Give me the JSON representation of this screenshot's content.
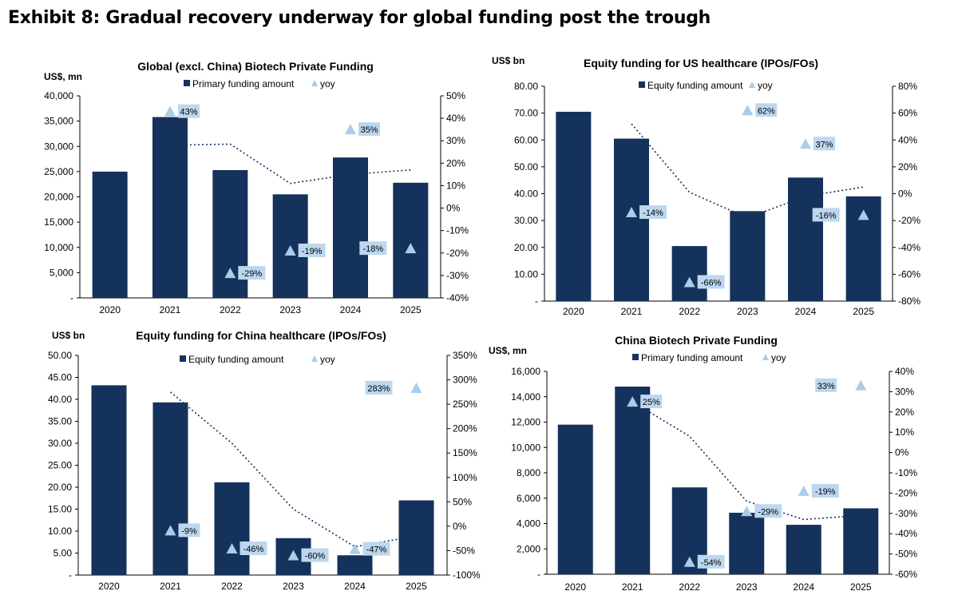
{
  "exhibit_title": "Exhibit 8: Gradual recovery underway for global funding post the trough",
  "colors": {
    "bar": "#14325b",
    "yoy_marker": "#a9cdea",
    "yoy_label_bg": "#bcd7ef",
    "trend": "#14325b"
  },
  "chart_data": [
    {
      "type": "bar",
      "title": "Global (excl. China) Biotech Private Funding",
      "unit_label": "US$, mn",
      "legend": {
        "bar": "Primary funding amount",
        "yoy": "yoy"
      },
      "categories": [
        "2020",
        "2021",
        "2022",
        "2023",
        "2024",
        "2025"
      ],
      "series": [
        {
          "name": "Primary funding amount",
          "values": [
            25000,
            35800,
            25300,
            20500,
            27800,
            22800
          ]
        },
        {
          "name": "yoy",
          "values": [
            null,
            0.43,
            -0.29,
            -0.19,
            0.35,
            -0.18
          ]
        }
      ],
      "yoy_labels": [
        "",
        "43%",
        "-29%",
        "-19%",
        "35%",
        "-18%"
      ],
      "trend": {
        "x": [
          1,
          2,
          3,
          4,
          5
        ],
        "y": [
          0.28,
          0.285,
          0.11,
          0.15,
          0.17
        ]
      },
      "ylim": [
        0,
        40000
      ],
      "y2lim": [
        -0.4,
        0.5
      ],
      "y_ticks": [
        0,
        5000,
        10000,
        15000,
        20000,
        25000,
        30000,
        35000,
        40000
      ],
      "y_tick_labels": [
        "-",
        "5,000",
        "10,000",
        "15,000",
        "20,000",
        "25,000",
        "30,000",
        "35,000",
        "40,000"
      ],
      "y2_ticks": [
        -0.4,
        -0.3,
        -0.2,
        -0.1,
        0,
        0.1,
        0.2,
        0.3,
        0.4,
        0.5
      ],
      "y2_tick_labels": [
        "-40%",
        "-30%",
        "-20%",
        "-10%",
        "0%",
        "10%",
        "20%",
        "30%",
        "40%",
        "50%"
      ]
    },
    {
      "type": "bar",
      "title": "Equity funding for US healthcare (IPOs/FOs)",
      "unit_label": "US$ bn",
      "legend": {
        "bar": "Equity funding amount",
        "yoy": "yoy"
      },
      "categories": [
        "2020",
        "2021",
        "2022",
        "2023",
        "2024",
        "2025"
      ],
      "series": [
        {
          "name": "Equity funding amount",
          "values": [
            70.5,
            60.5,
            20.5,
            33.5,
            46.0,
            39.0
          ]
        },
        {
          "name": "yoy",
          "values": [
            null,
            -0.14,
            -0.66,
            0.62,
            0.37,
            -0.16
          ]
        }
      ],
      "yoy_labels": [
        "",
        "-14%",
        "-66%",
        "62%",
        "37%",
        "-16%"
      ],
      "trend": {
        "x": [
          1,
          2,
          3,
          4,
          5
        ],
        "y": [
          0.52,
          0.01,
          -0.18,
          -0.02,
          0.05
        ]
      },
      "ylim": [
        0,
        80
      ],
      "y2lim": [
        -0.8,
        0.8
      ],
      "y_ticks": [
        0,
        10,
        20,
        30,
        40,
        50,
        60,
        70,
        80
      ],
      "y_tick_labels": [
        "-",
        "10.00",
        "20.00",
        "30.00",
        "40.00",
        "50.00",
        "60.00",
        "70.00",
        "80.00"
      ],
      "y2_ticks": [
        -0.8,
        -0.6,
        -0.4,
        -0.2,
        0,
        0.2,
        0.4,
        0.6,
        0.8
      ],
      "y2_tick_labels": [
        "-80%",
        "-60%",
        "-40%",
        "-20%",
        "0%",
        "20%",
        "40%",
        "60%",
        "80%"
      ]
    },
    {
      "type": "bar",
      "title": "Equity funding for China healthcare (IPOs/FOs)",
      "unit_label": "US$ bn",
      "legend": {
        "bar": "Equity funding amount",
        "yoy": "yoy"
      },
      "categories": [
        "2020",
        "2021",
        "2022",
        "2023",
        "2024",
        "2025"
      ],
      "series": [
        {
          "name": "Equity funding amount",
          "values": [
            43.2,
            39.3,
            21.1,
            8.4,
            4.5,
            17.0
          ]
        },
        {
          "name": "yoy",
          "values": [
            null,
            -0.09,
            -0.46,
            -0.6,
            -0.47,
            2.83
          ]
        }
      ],
      "yoy_labels": [
        "",
        "-9%",
        "-46%",
        "-60%",
        "-47%",
        "283%"
      ],
      "trend": {
        "x": [
          1,
          2,
          3,
          4,
          5
        ],
        "y": [
          2.75,
          1.7,
          0.35,
          -0.42,
          -0.2
        ]
      },
      "ylim": [
        0,
        50
      ],
      "y2lim": [
        -1.0,
        3.5
      ],
      "y_ticks": [
        0,
        5,
        10,
        15,
        20,
        25,
        30,
        35,
        40,
        45,
        50
      ],
      "y_tick_labels": [
        "-",
        "5.00",
        "10.00",
        "15.00",
        "20.00",
        "25.00",
        "30.00",
        "35.00",
        "40.00",
        "45.00",
        "50.00"
      ],
      "y2_ticks": [
        -1.0,
        -0.5,
        0,
        0.5,
        1.0,
        1.5,
        2.0,
        2.5,
        3.0,
        3.5
      ],
      "y2_tick_labels": [
        "-100%",
        "-50%",
        "0%",
        "50%",
        "100%",
        "150%",
        "200%",
        "250%",
        "300%",
        "350%"
      ]
    },
    {
      "type": "bar",
      "title": "China Biotech Private Funding",
      "unit_label": "US$, mn",
      "legend": {
        "bar": "Primary funding amount",
        "yoy": "yoy"
      },
      "categories": [
        "2020",
        "2021",
        "2022",
        "2023",
        "2024",
        "2025"
      ],
      "series": [
        {
          "name": "Primary funding amount",
          "values": [
            11800,
            14800,
            6850,
            4850,
            3900,
            5200
          ]
        },
        {
          "name": "yoy",
          "values": [
            null,
            0.25,
            -0.54,
            -0.29,
            -0.19,
            0.33
          ]
        }
      ],
      "yoy_labels": [
        "",
        "25%",
        "-54%",
        "-29%",
        "-19%",
        "33%"
      ],
      "trend": {
        "x": [
          1,
          2,
          3,
          4,
          5
        ],
        "y": [
          0.25,
          0.08,
          -0.24,
          -0.33,
          -0.31
        ]
      },
      "ylim": [
        0,
        16000
      ],
      "y2lim": [
        -0.6,
        0.4
      ],
      "y_ticks": [
        0,
        2000,
        4000,
        6000,
        8000,
        10000,
        12000,
        14000,
        16000
      ],
      "y_tick_labels": [
        "-",
        "2,000",
        "4,000",
        "6,000",
        "8,000",
        "10,000",
        "12,000",
        "14,000",
        "16,000"
      ],
      "y2_ticks": [
        -0.6,
        -0.5,
        -0.4,
        -0.3,
        -0.2,
        -0.1,
        0,
        0.1,
        0.2,
        0.3,
        0.4
      ],
      "y2_tick_labels": [
        "-60%",
        "-50%",
        "-40%",
        "-30%",
        "-20%",
        "-10%",
        "0%",
        "10%",
        "20%",
        "30%",
        "40%"
      ]
    }
  ]
}
